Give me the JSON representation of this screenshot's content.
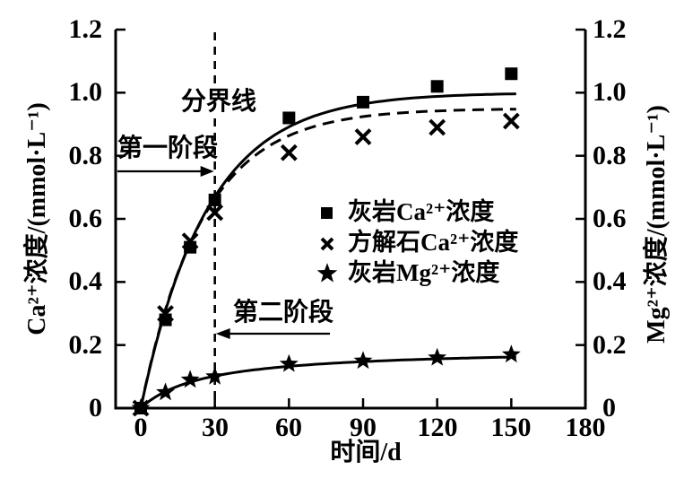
{
  "chart_data": {
    "type": "line",
    "title": "",
    "background": "#ffffff",
    "foreground": "#000000",
    "grid": false,
    "x": [
      0,
      10,
      20,
      30,
      60,
      90,
      120,
      150
    ],
    "series": [
      {
        "name": "灰岩Ca²⁺浓度",
        "marker": "square",
        "linestyle": "solid",
        "axis": "left",
        "values": [
          0,
          0.28,
          0.51,
          0.66,
          0.92,
          0.97,
          1.02,
          1.06
        ],
        "fit": {
          "model": "saturating_exp",
          "A": 1.0,
          "tau": 27
        }
      },
      {
        "name": "方解石Ca²⁺浓度",
        "marker": "x",
        "linestyle": "dashed",
        "axis": "left",
        "values": [
          0,
          0.3,
          0.53,
          0.62,
          0.81,
          0.86,
          0.89,
          0.91
        ],
        "fit": {
          "model": "saturating_exp",
          "A": 0.95,
          "tau": 25
        }
      },
      {
        "name": "灰岩Mg²⁺浓度",
        "marker": "star",
        "linestyle": "solid",
        "axis": "right",
        "values": [
          0,
          0.05,
          0.09,
          0.1,
          0.14,
          0.15,
          0.16,
          0.17
        ],
        "fit": {
          "model": "michaelis_menten",
          "A": 0.19,
          "K": 26
        }
      }
    ],
    "axes": {
      "x": {
        "label": "时间/d",
        "min": 0,
        "max": 180,
        "tick_values": [
          0,
          30,
          60,
          90,
          120,
          150,
          180
        ],
        "tick_labels": [
          "0",
          "30",
          "60",
          "90",
          "120",
          "150",
          "180"
        ]
      },
      "left": {
        "label": "Ca²⁺浓度/(mmol·L⁻¹)",
        "min": 0,
        "max": 1.2,
        "tick_values": [
          1.2,
          1.0,
          0.8,
          0.6,
          0.4,
          0.2,
          0
        ],
        "tick_labels": [
          "1.2",
          "1.0",
          "0.8",
          "0.6",
          "0.4",
          "0.2",
          "0"
        ]
      },
      "right": {
        "label": "Mg²⁺浓度/(mmol·L⁻¹)",
        "min": 0,
        "max": 1.2,
        "tick_values": [
          1.2,
          1.0,
          0.8,
          0.6,
          0.4,
          0.2,
          0
        ],
        "tick_labels": [
          "1.2",
          "1.0",
          "0.8",
          "0.6",
          "0.4",
          "0.2",
          "0"
        ]
      }
    },
    "annotations": {
      "boundary": {
        "label": "分界线",
        "x": 30,
        "style": "dashed-vertical-line"
      },
      "stage1": {
        "label": "第一阶段",
        "arrow": "points-right-to-boundary"
      },
      "stage2": {
        "label": "第二阶段",
        "arrow": "points-left-to-boundary"
      }
    },
    "legend_position": "center-right"
  }
}
